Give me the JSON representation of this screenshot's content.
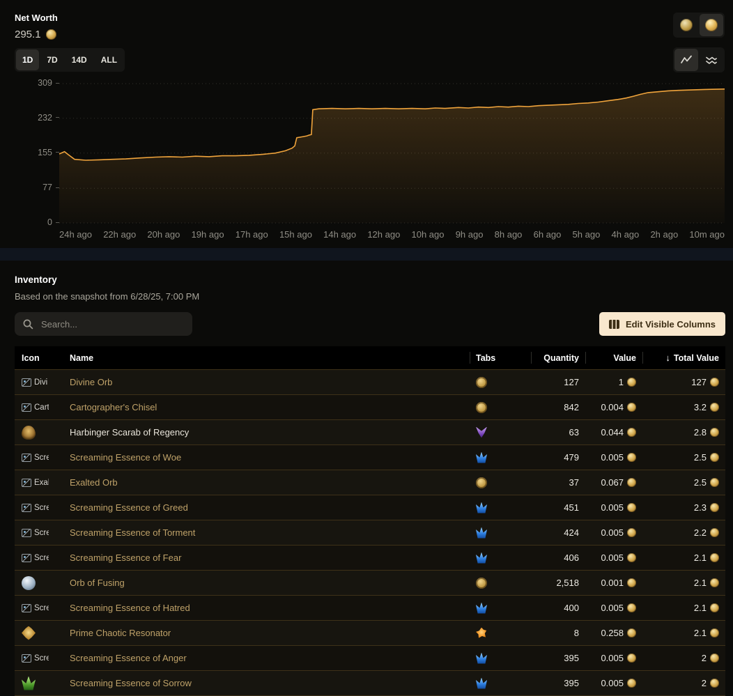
{
  "networth": {
    "title": "Net Worth",
    "value": "295.1",
    "range_buttons": [
      {
        "label": "1D",
        "active": true
      },
      {
        "label": "7D",
        "active": false
      },
      {
        "label": "14D",
        "active": false
      },
      {
        "label": "ALL",
        "active": false
      }
    ],
    "currency_buttons": [
      {
        "icon": "chaos-orb-icon",
        "active": false
      },
      {
        "icon": "divine-orb-icon",
        "active": true
      }
    ],
    "chart_type_buttons": [
      {
        "icon": "line-chart-icon",
        "active": true
      },
      {
        "icon": "stacked-chart-icon",
        "active": false
      }
    ]
  },
  "chart_data": {
    "type": "area",
    "title": "Net Worth",
    "y_max": 309,
    "y_ticks": [
      309,
      232,
      155,
      77,
      0
    ],
    "x_ticks": [
      "24h ago",
      "22h ago",
      "20h ago",
      "19h ago",
      "17h ago",
      "15h ago",
      "14h ago",
      "12h ago",
      "10h ago",
      "9h ago",
      "8h ago",
      "6h ago",
      "5h ago",
      "4h ago",
      "2h ago",
      "10m ago"
    ],
    "line_color": "#f0a43c",
    "grid": "dotted-horizontal",
    "points": [
      [
        0,
        153
      ],
      [
        0.008,
        158
      ],
      [
        0.014,
        151
      ],
      [
        0.023,
        141
      ],
      [
        0.04,
        139
      ],
      [
        0.06,
        140
      ],
      [
        0.08,
        141
      ],
      [
        0.1,
        142
      ],
      [
        0.12,
        144
      ],
      [
        0.145,
        146
      ],
      [
        0.165,
        147
      ],
      [
        0.185,
        146
      ],
      [
        0.205,
        148
      ],
      [
        0.225,
        147
      ],
      [
        0.245,
        149
      ],
      [
        0.265,
        149
      ],
      [
        0.285,
        150
      ],
      [
        0.305,
        152
      ],
      [
        0.325,
        155
      ],
      [
        0.34,
        160
      ],
      [
        0.35,
        166
      ],
      [
        0.354,
        171
      ],
      [
        0.357,
        189
      ],
      [
        0.365,
        191
      ],
      [
        0.372,
        193
      ],
      [
        0.376,
        195
      ],
      [
        0.379,
        196
      ],
      [
        0.381,
        251
      ],
      [
        0.39,
        253
      ],
      [
        0.41,
        254
      ],
      [
        0.43,
        253
      ],
      [
        0.45,
        254
      ],
      [
        0.47,
        253
      ],
      [
        0.49,
        254
      ],
      [
        0.51,
        253
      ],
      [
        0.53,
        254
      ],
      [
        0.55,
        253
      ],
      [
        0.565,
        255
      ],
      [
        0.58,
        254
      ],
      [
        0.6,
        256
      ],
      [
        0.615,
        255
      ],
      [
        0.63,
        257
      ],
      [
        0.645,
        256
      ],
      [
        0.66,
        258
      ],
      [
        0.675,
        257
      ],
      [
        0.69,
        259
      ],
      [
        0.705,
        258
      ],
      [
        0.72,
        260
      ],
      [
        0.735,
        261
      ],
      [
        0.75,
        262
      ],
      [
        0.765,
        263
      ],
      [
        0.78,
        265
      ],
      [
        0.795,
        266
      ],
      [
        0.81,
        268
      ],
      [
        0.825,
        271
      ],
      [
        0.84,
        274
      ],
      [
        0.852,
        277
      ],
      [
        0.863,
        281
      ],
      [
        0.873,
        285
      ],
      [
        0.885,
        289
      ],
      [
        0.9,
        291
      ],
      [
        0.915,
        293
      ],
      [
        0.93,
        294
      ],
      [
        0.95,
        295
      ],
      [
        0.97,
        296
      ],
      [
        1,
        297
      ]
    ]
  },
  "inventory": {
    "title": "Inventory",
    "subtitle": "Based on the snapshot from 6/28/25, 7:00 PM",
    "search_placeholder": "Search...",
    "edit_columns_label": "Edit Visible Columns",
    "columns": [
      "Icon",
      "Name",
      "Tabs",
      "Quantity",
      "Value",
      "Total Value"
    ],
    "sort_icon": "↓",
    "rows": [
      {
        "icon": "broken",
        "alt": "Divi",
        "name": "Divine Orb",
        "tab": "currency",
        "qty": "127",
        "value": "1",
        "total": "127"
      },
      {
        "icon": "broken",
        "alt": "Cart",
        "name": "Cartographer's Chisel",
        "tab": "currency",
        "qty": "842",
        "value": "0.004",
        "total": "3.2"
      },
      {
        "icon": "scarab-item",
        "alt": "",
        "name": "Harbinger Scarab of Regency",
        "tab": "scarab",
        "qty": "63",
        "value": "0.044",
        "total": "2.8",
        "highlight": true
      },
      {
        "icon": "broken",
        "alt": "Scre",
        "name": "Screaming Essence of Woe",
        "tab": "essence",
        "qty": "479",
        "value": "0.005",
        "total": "2.5"
      },
      {
        "icon": "broken",
        "alt": "Exal",
        "name": "Exalted Orb",
        "tab": "currency",
        "qty": "37",
        "value": "0.067",
        "total": "2.5"
      },
      {
        "icon": "broken",
        "alt": "Scre",
        "name": "Screaming Essence of Greed",
        "tab": "essence",
        "qty": "451",
        "value": "0.005",
        "total": "2.3"
      },
      {
        "icon": "broken",
        "alt": "Scre",
        "name": "Screaming Essence of Torment",
        "tab": "essence",
        "qty": "424",
        "value": "0.005",
        "total": "2.2"
      },
      {
        "icon": "broken",
        "alt": "Scre",
        "name": "Screaming Essence of Fear",
        "tab": "essence",
        "qty": "406",
        "value": "0.005",
        "total": "2.1"
      },
      {
        "icon": "fusing-item",
        "alt": "",
        "name": "Orb of Fusing",
        "tab": "currency",
        "qty": "2,518",
        "value": "0.001",
        "total": "2.1"
      },
      {
        "icon": "broken",
        "alt": "Scre",
        "name": "Screaming Essence of Hatred",
        "tab": "essence",
        "qty": "400",
        "value": "0.005",
        "total": "2.1"
      },
      {
        "icon": "resonator-item",
        "alt": "",
        "name": "Prime Chaotic Resonator",
        "tab": "resonator",
        "qty": "8",
        "value": "0.258",
        "total": "2.1"
      },
      {
        "icon": "broken",
        "alt": "Scre",
        "name": "Screaming Essence of Anger",
        "tab": "essence",
        "qty": "395",
        "value": "0.005",
        "total": "2"
      },
      {
        "icon": "essence-item",
        "alt": "",
        "name": "Screaming Essence of Sorrow",
        "tab": "essence",
        "qty": "395",
        "value": "0.005",
        "total": "2"
      }
    ]
  },
  "colors": {
    "accent_line": "#f0a43c",
    "item_name_text": "#bfa269",
    "edit_button_bg": "#f8e7cd"
  }
}
